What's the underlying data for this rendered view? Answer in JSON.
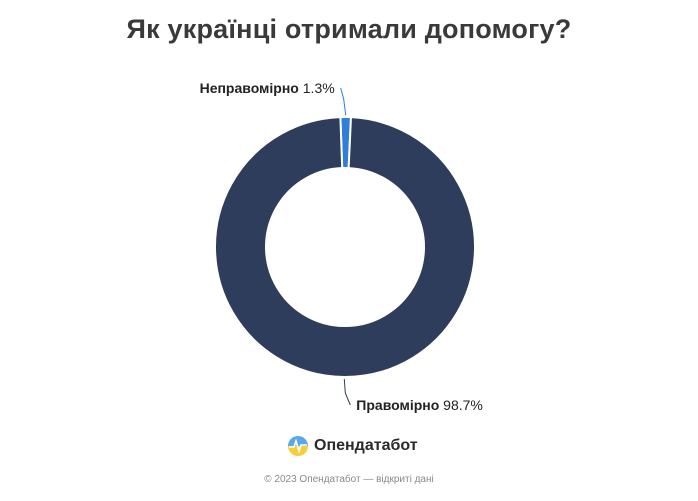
{
  "chart_data": {
    "type": "pie",
    "title": "Як українці отримали допомогу?",
    "slices": [
      {
        "label": "Неправомірно",
        "value_label": "1.3%",
        "value": 1.3,
        "color": "#2f7ed8"
      },
      {
        "label": "Правомірно",
        "value_label": "98.7%",
        "value": 98.7,
        "color": "#2e3d5c"
      }
    ]
  },
  "brand": {
    "name": "Опендатабот",
    "logo_icon": "opendatabot-logo-icon"
  },
  "footer": {
    "text": "© 2023 Опендатабот — відкриті дані"
  }
}
